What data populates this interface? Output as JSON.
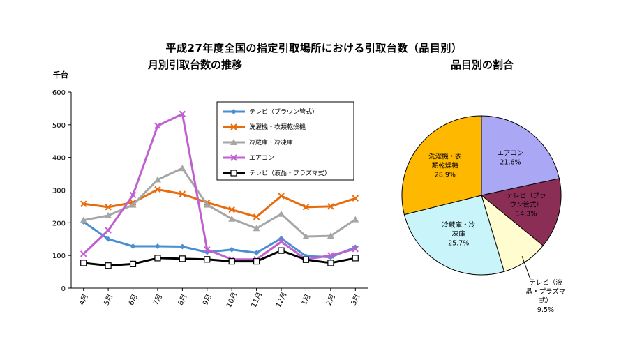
{
  "header": {
    "title": "平成27年度全国の指定引取場所における引取台数（品目別）",
    "line_title": "月別引取台数の推移",
    "pie_title": "品目別の割合"
  },
  "chart_data": [
    {
      "type": "line",
      "title": "月別引取台数の推移",
      "ylabel": "千台",
      "ylim": [
        0,
        600
      ],
      "yticks": [
        0,
        100,
        200,
        300,
        400,
        500,
        600
      ],
      "grid": false,
      "legend": "top-right",
      "categories": [
        "4月",
        "5月",
        "6月",
        "7月",
        "8月",
        "9月",
        "10月",
        "11月",
        "12月",
        "1月",
        "2月",
        "3月"
      ],
      "series": [
        {
          "name": "テレビ（ブラウン管式）",
          "color": "#4a8fd0",
          "marker": "diamond",
          "values": [
            203,
            150,
            128,
            128,
            127,
            110,
            118,
            108,
            152,
            98,
            95,
            125
          ]
        },
        {
          "name": "洗濯機・衣類乾燥機",
          "color": "#e86b0c",
          "marker": "x",
          "values": [
            258,
            248,
            262,
            302,
            288,
            262,
            240,
            218,
            282,
            248,
            250,
            275
          ]
        },
        {
          "name": "冷蔵庫・冷凍庫",
          "color": "#a6a6a6",
          "marker": "triangle",
          "values": [
            208,
            222,
            255,
            332,
            367,
            255,
            212,
            183,
            227,
            158,
            160,
            210
          ]
        },
        {
          "name": "エアコン",
          "color": "#c060d0",
          "marker": "x",
          "values": [
            105,
            177,
            285,
            497,
            533,
            118,
            88,
            88,
            142,
            88,
            100,
            120
          ]
        },
        {
          "name": "テレビ（液晶・プラズマ式）",
          "color": "#000000",
          "marker": "square",
          "values": [
            77,
            69,
            74,
            92,
            90,
            88,
            82,
            82,
            115,
            87,
            77,
            92
          ]
        }
      ]
    },
    {
      "type": "pie",
      "title": "品目別の割合",
      "slices": [
        {
          "label": "エアコン",
          "value": 21.6,
          "text": "21.6%",
          "color": "#aaa8f4"
        },
        {
          "label": "テレビ（ブラウン管式）",
          "value": 14.3,
          "text": "14.3%",
          "color": "#8a2e55"
        },
        {
          "label": "テレビ（液晶・プラズマ式）",
          "value": 9.5,
          "text": "9.5%",
          "color": "#fffdd0"
        },
        {
          "label": "冷蔵庫・冷凍庫",
          "value": 25.7,
          "text": "25.7%",
          "color": "#c8f4fa"
        },
        {
          "label": "洗濯機・衣類乾燥機",
          "value": 28.9,
          "text": "28.9%",
          "color": "#ffb800"
        }
      ],
      "label_lines": {
        "エアコン": [
          "エアコン"
        ],
        "テレビ（ブラウン管式）": [
          "テレビ（ブラ",
          "ウン管式）"
        ],
        "テレビ（液晶・プラズマ式）": [
          "テレビ（液",
          "晶・プラズマ",
          "式）"
        ],
        "冷蔵庫・冷凍庫": [
          "冷蔵庫・冷",
          "凍庫"
        ],
        "洗濯機・衣類乾燥機": [
          "洗濯機・衣",
          "類乾燥機"
        ]
      }
    }
  ]
}
